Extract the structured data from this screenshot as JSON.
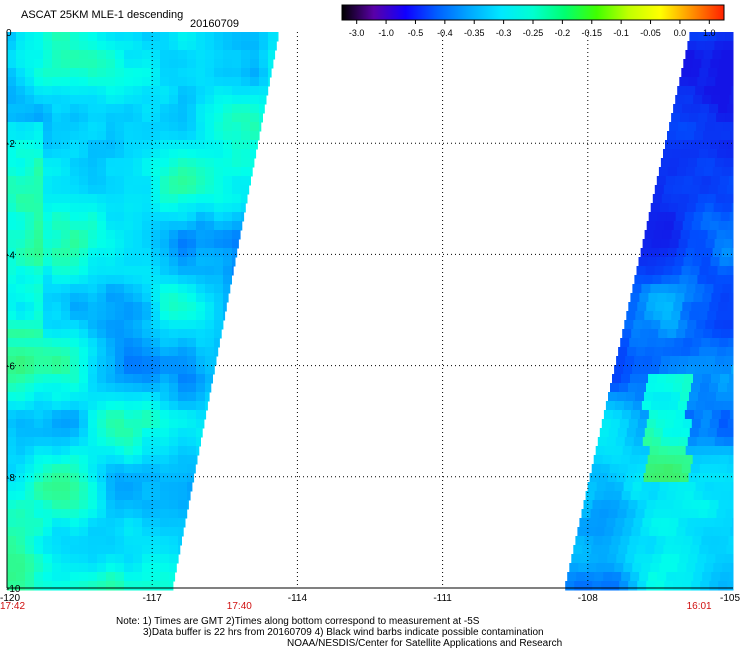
{
  "chart_data": {
    "type": "heatmap",
    "title": "ASCAT 25KM MLE-1 descending",
    "date": "20160709",
    "xlim": [
      -120,
      -105
    ],
    "ylim": [
      -10,
      0
    ],
    "x_ticks": [
      "-120",
      "-117",
      "-114",
      "-111",
      "-108",
      "-105"
    ],
    "y_ticks": [
      "0",
      "-2",
      "-4",
      "-6",
      "-8",
      "-10"
    ],
    "grid": "dotted",
    "colorbar": {
      "ticks": [
        "-3.0",
        "-1.0",
        "-0.5",
        "-0.4",
        "-0.35",
        "-0.3",
        "-0.25",
        "-0.2",
        "-0.15",
        "-0.1",
        "-0.05",
        "0.0",
        "1.0"
      ],
      "colors": [
        "#000000",
        "#5a00a8",
        "#1000ff",
        "#0060ff",
        "#00a8ff",
        "#00e8ff",
        "#00ffd0",
        "#00ff70",
        "#40ff00",
        "#c0ff00",
        "#ffff00",
        "#ff9000",
        "#ff2000"
      ]
    },
    "swaths": [
      {
        "name": "west",
        "lat_edges": [
          0,
          -10
        ],
        "lon_west": -120,
        "lon_east_at_top": -114.4,
        "lon_east_at_bottom": -116.6,
        "typical_value": -0.27
      },
      {
        "name": "east",
        "lat_edges": [
          0,
          -10
        ],
        "lon_west_at_top": -105.9,
        "lon_west_at_bottom": -108.5,
        "lon_east": -105,
        "typical_value": -0.33
      }
    ],
    "time_labels": [
      {
        "text": "17:42",
        "lon": -120
      },
      {
        "text": "17:40",
        "lon": -115.2
      },
      {
        "text": "16:01",
        "lon": -105.7
      }
    ]
  },
  "notes": {
    "line1": "Note: 1) Times are GMT 2)Times along bottom correspond to measurement at -5S",
    "line2": "3)Data buffer is 22 hrs from 20160709 4) Black wind barbs indicate possible contamination",
    "line3": "NOAA/NESDIS/Center for Satellite Applications and Research"
  }
}
